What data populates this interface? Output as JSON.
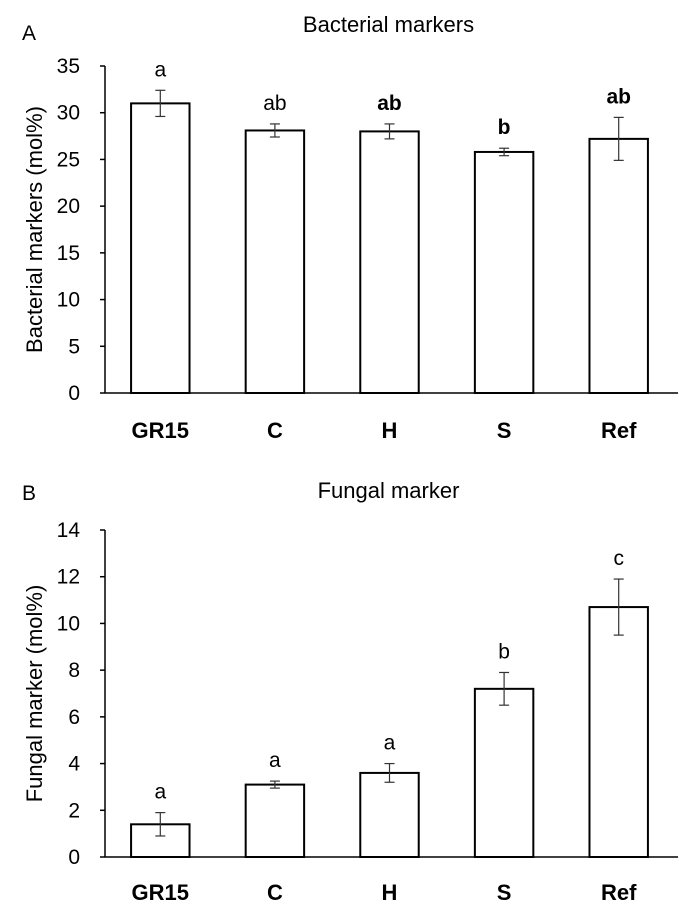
{
  "chart_data": [
    {
      "type": "bar",
      "panel": "A",
      "title": "Bacterial markers",
      "ylabel": "Bacterial markers (mol%)",
      "xlabel": "",
      "ylim": [
        0,
        35
      ],
      "yticks": [
        "0",
        "5",
        "10",
        "15",
        "20",
        "25",
        "30",
        "35"
      ],
      "ytick_values": [
        0,
        5,
        10,
        15,
        20,
        25,
        30,
        35
      ],
      "categories": [
        "GR15",
        "C",
        "H",
        "S",
        "Ref"
      ],
      "values": [
        31.0,
        28.1,
        28.0,
        25.8,
        27.2
      ],
      "errors": [
        1.4,
        0.7,
        0.8,
        0.4,
        2.3
      ],
      "significance": [
        "a",
        "ab",
        "ab",
        "b",
        "ab"
      ],
      "significance_bold": [
        false,
        false,
        true,
        true,
        true
      ],
      "grid": false,
      "legend": "none"
    },
    {
      "type": "bar",
      "panel": "B",
      "title": "Fungal marker",
      "ylabel": "Fungal marker (mol%)",
      "xlabel": "",
      "ylim": [
        0,
        14
      ],
      "yticks": [
        "0",
        "2",
        "4",
        "6",
        "8",
        "10",
        "12",
        "14"
      ],
      "ytick_values": [
        0,
        2,
        4,
        6,
        8,
        10,
        12,
        14
      ],
      "categories": [
        "GR15",
        "C",
        "H",
        "S",
        "Ref"
      ],
      "values": [
        1.4,
        3.1,
        3.6,
        7.2,
        10.7
      ],
      "errors": [
        0.5,
        0.15,
        0.4,
        0.7,
        1.2
      ],
      "significance": [
        "a",
        "a",
        "a",
        "b",
        "c"
      ],
      "significance_bold": [
        false,
        false,
        false,
        false,
        false
      ],
      "grid": false,
      "legend": "none"
    }
  ]
}
